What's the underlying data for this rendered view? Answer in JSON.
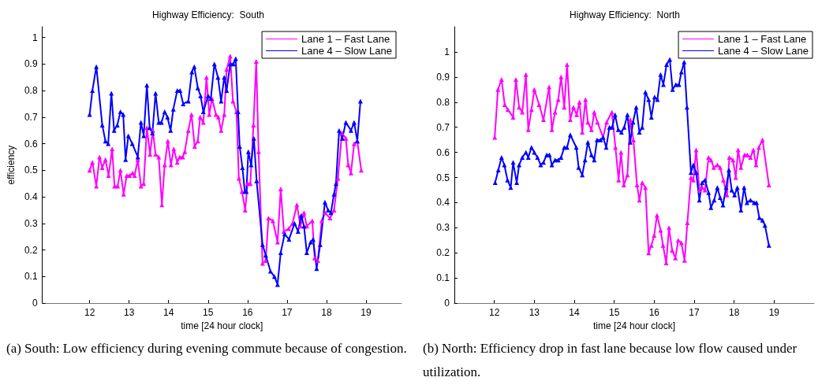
{
  "chart_data": [
    {
      "type": "line",
      "title": "Highway Efficiency:  South",
      "xlabel": "time [24 hour clock]",
      "ylabel": "efficiency",
      "xlim": [
        10.8,
        19.9
      ],
      "ylim": [
        0,
        1.04
      ],
      "xticks": [
        12,
        13,
        14,
        15,
        16,
        17,
        18,
        19
      ],
      "yticks": [
        0,
        0.1,
        0.2,
        0.3,
        0.4,
        0.5,
        0.6,
        0.7,
        0.8,
        0.9,
        1
      ],
      "grid": false,
      "legend": "top right",
      "line_style": "solid",
      "annotations": [
        "(a) South:  Low efficiency during evening commute because of congestion."
      ],
      "series": [
        {
          "name": "Lane 1 – Fast Lane",
          "color": "#ff00ff",
          "marker": "triangle",
          "x": [
            12.0,
            12.07,
            12.17,
            12.25,
            12.32,
            12.4,
            12.48,
            12.57,
            12.63,
            12.71,
            12.78,
            12.86,
            12.94,
            13.01,
            13.09,
            13.14,
            13.22,
            13.3,
            13.37,
            13.45,
            13.53,
            13.6,
            13.67,
            13.75,
            13.83,
            13.9,
            13.98,
            14.06,
            14.13,
            14.22,
            14.28,
            14.36,
            14.41,
            14.5,
            14.58,
            14.66,
            14.74,
            14.8,
            14.88,
            14.96,
            15.03,
            15.1,
            15.2,
            15.26,
            15.33,
            15.41,
            15.47,
            15.56,
            15.63,
            15.72,
            15.78,
            15.86,
            15.94,
            16.0,
            16.07,
            16.15,
            16.22,
            16.28,
            16.38,
            16.46,
            16.53,
            16.64,
            16.76,
            16.84,
            16.92,
            17.04,
            17.14,
            17.25,
            17.34,
            17.43,
            17.5,
            17.64,
            17.7,
            17.78,
            17.88,
            17.96,
            18.09,
            18.19,
            18.29,
            18.39,
            18.49,
            18.55,
            18.62,
            18.7,
            18.78,
            18.88
          ],
          "values": [
            0.5,
            0.53,
            0.44,
            0.55,
            0.51,
            0.54,
            0.48,
            0.58,
            0.44,
            0.44,
            0.5,
            0.41,
            0.48,
            0.48,
            0.49,
            0.48,
            0.54,
            0.44,
            0.45,
            0.66,
            0.56,
            0.65,
            0.56,
            0.55,
            0.37,
            0.52,
            0.61,
            0.52,
            0.58,
            0.53,
            0.55,
            0.55,
            0.57,
            0.65,
            0.71,
            0.59,
            0.61,
            0.7,
            0.68,
            0.85,
            0.71,
            0.77,
            0.71,
            0.7,
            0.65,
            0.71,
            0.88,
            0.93,
            0.76,
            0.72,
            0.47,
            0.42,
            0.35,
            0.45,
            0.45,
            0.67,
            0.91,
            0.57,
            0.15,
            0.16,
            0.32,
            0.31,
            0.23,
            0.43,
            0.27,
            0.28,
            0.3,
            0.37,
            0.29,
            0.34,
            0.29,
            0.31,
            0.17,
            0.16,
            0.31,
            0.34,
            0.32,
            0.35,
            0.47,
            0.64,
            0.62,
            0.52,
            0.49,
            0.6,
            0.61,
            0.5
          ]
        },
        {
          "name": "Lane 4 – Slow Lane",
          "color": "#0000ff",
          "marker": "triangle",
          "x": [
            12.0,
            12.07,
            12.17,
            12.32,
            12.4,
            12.47,
            12.55,
            12.62,
            12.7,
            12.78,
            12.85,
            12.91,
            12.98,
            13.08,
            13.22,
            13.3,
            13.37,
            13.45,
            13.52,
            13.59,
            13.67,
            13.75,
            13.82,
            13.9,
            13.97,
            14.05,
            14.12,
            14.22,
            14.29,
            14.37,
            14.5,
            14.59,
            14.65,
            14.74,
            14.81,
            14.88,
            15.0,
            15.07,
            15.16,
            15.25,
            15.33,
            15.41,
            15.47,
            15.56,
            15.64,
            15.7,
            15.76,
            15.8,
            15.87,
            15.93,
            15.97,
            16.02,
            16.09,
            16.16,
            16.23,
            16.38,
            16.46,
            16.58,
            16.68,
            16.76,
            16.84,
            16.94,
            17.05,
            17.19,
            17.28,
            17.36,
            17.43,
            17.5,
            17.6,
            17.66,
            17.75,
            17.84,
            17.96,
            18.04,
            18.11,
            18.19,
            18.24,
            18.32,
            18.4,
            18.49,
            18.62,
            18.7,
            18.78,
            18.86
          ],
          "values": [
            0.71,
            0.8,
            0.89,
            0.67,
            0.61,
            0.6,
            0.79,
            0.65,
            0.67,
            0.72,
            0.71,
            0.54,
            0.63,
            0.6,
            0.55,
            0.68,
            0.63,
            0.82,
            0.66,
            0.64,
            0.79,
            0.68,
            0.68,
            0.72,
            0.7,
            0.65,
            0.73,
            0.8,
            0.8,
            0.75,
            0.76,
            0.87,
            0.89,
            0.81,
            0.78,
            0.72,
            0.78,
            0.77,
            0.9,
            0.85,
            0.76,
            0.85,
            0.8,
            0.9,
            0.9,
            0.92,
            0.72,
            0.59,
            0.51,
            0.42,
            0.42,
            0.57,
            0.52,
            0.62,
            0.46,
            0.22,
            0.18,
            0.12,
            0.1,
            0.07,
            0.19,
            0.26,
            0.24,
            0.3,
            0.27,
            0.33,
            0.29,
            0.19,
            0.23,
            0.24,
            0.13,
            0.22,
            0.38,
            0.35,
            0.34,
            0.41,
            0.45,
            0.65,
            0.62,
            0.68,
            0.65,
            0.68,
            0.61,
            0.76
          ]
        }
      ]
    },
    {
      "type": "line",
      "title": "Highway Efficiency:  North",
      "xlabel": "time [24 hour clock]",
      "xlim": [
        11,
        20
      ],
      "ylim": [
        0,
        1.1
      ],
      "xticks": [
        12,
        13,
        14,
        15,
        16,
        17,
        18,
        19
      ],
      "yticks": [
        0,
        0.1,
        0.2,
        0.3,
        0.4,
        0.5,
        0.6,
        0.7,
        0.8,
        0.9,
        1
      ],
      "grid": false,
      "legend": "top right",
      "line_style": "solid",
      "annotations": [
        "(b) North:  Efficiency drop in fast lane because low flow caused under utilization."
      ],
      "series": [
        {
          "name": "Lane 1 – Fast Lane",
          "color": "#ff00ff",
          "marker": "triangle",
          "x": [
            12.01,
            12.09,
            12.18,
            12.26,
            12.34,
            12.47,
            12.54,
            12.62,
            12.7,
            12.79,
            12.85,
            12.93,
            13.0,
            13.12,
            13.23,
            13.37,
            13.44,
            13.52,
            13.6,
            13.67,
            13.75,
            13.82,
            13.9,
            13.98,
            14.06,
            14.13,
            14.2,
            14.28,
            14.34,
            14.43,
            14.5,
            14.58,
            14.72,
            14.81,
            14.94,
            15.03,
            15.11,
            15.17,
            15.24,
            15.33,
            15.4,
            15.48,
            15.57,
            15.63,
            15.7,
            15.78,
            15.86,
            15.93,
            16.0,
            16.07,
            16.16,
            16.22,
            16.3,
            16.37,
            16.45,
            16.53,
            16.6,
            16.68,
            16.76,
            16.83,
            16.92,
            16.98,
            17.05,
            17.13,
            17.2,
            17.27,
            17.36,
            17.42,
            17.49,
            17.58,
            17.65,
            17.73,
            17.82,
            17.88,
            17.97,
            18.04,
            18.1,
            18.17,
            18.26,
            18.33,
            18.41,
            18.48,
            18.55,
            18.62,
            18.71,
            18.87
          ],
          "values": [
            0.66,
            0.85,
            0.89,
            0.79,
            0.77,
            0.74,
            0.89,
            0.78,
            0.76,
            0.91,
            0.69,
            0.77,
            0.85,
            0.79,
            0.73,
            0.86,
            0.69,
            0.76,
            0.81,
            0.9,
            0.78,
            0.95,
            0.73,
            0.78,
            0.75,
            0.8,
            0.68,
            0.81,
            0.72,
            0.69,
            0.76,
            0.72,
            0.66,
            0.72,
            0.76,
            0.62,
            0.49,
            0.6,
            0.47,
            0.51,
            0.73,
            0.65,
            0.47,
            0.41,
            0.48,
            0.46,
            0.2,
            0.23,
            0.27,
            0.35,
            0.29,
            0.23,
            0.16,
            0.3,
            0.21,
            0.18,
            0.25,
            0.24,
            0.17,
            0.32,
            0.5,
            0.49,
            0.61,
            0.45,
            0.46,
            0.45,
            0.58,
            0.57,
            0.54,
            0.55,
            0.54,
            0.49,
            0.43,
            0.58,
            0.57,
            0.5,
            0.61,
            0.54,
            0.59,
            0.59,
            0.58,
            0.61,
            0.55,
            0.62,
            0.65,
            0.47
          ]
        },
        {
          "name": "Lane 4 – Slow Lane",
          "color": "#0000ff",
          "marker": "triangle",
          "x": [
            12.02,
            12.1,
            12.18,
            12.25,
            12.33,
            12.41,
            12.47,
            12.56,
            12.62,
            12.7,
            12.79,
            12.85,
            12.93,
            13.0,
            13.08,
            13.16,
            13.23,
            13.31,
            13.38,
            13.44,
            13.52,
            13.6,
            13.67,
            13.75,
            13.82,
            13.9,
            14.05,
            14.11,
            14.2,
            14.27,
            14.34,
            14.43,
            14.5,
            14.57,
            14.66,
            14.72,
            14.8,
            14.88,
            14.95,
            15.02,
            15.1,
            15.18,
            15.25,
            15.33,
            15.4,
            15.47,
            15.55,
            15.63,
            15.7,
            15.78,
            15.86,
            15.93,
            16.01,
            16.08,
            16.16,
            16.23,
            16.31,
            16.39,
            16.46,
            16.54,
            16.62,
            16.68,
            16.75,
            16.82,
            16.92,
            16.98,
            17.05,
            17.13,
            17.2,
            17.27,
            17.36,
            17.42,
            17.5,
            17.58,
            17.65,
            17.72,
            17.8,
            17.87,
            17.94,
            18.01,
            18.08,
            18.17,
            18.25,
            18.32,
            18.41,
            18.5,
            18.56,
            18.63,
            18.71,
            18.77,
            18.87
          ],
          "values": [
            0.48,
            0.53,
            0.58,
            0.55,
            0.49,
            0.46,
            0.56,
            0.48,
            0.55,
            0.58,
            0.6,
            0.58,
            0.62,
            0.6,
            0.58,
            0.55,
            0.56,
            0.59,
            0.59,
            0.55,
            0.57,
            0.57,
            0.58,
            0.62,
            0.62,
            0.67,
            0.62,
            0.54,
            0.51,
            0.57,
            0.64,
            0.59,
            0.57,
            0.65,
            0.65,
            0.66,
            0.62,
            0.7,
            0.7,
            0.75,
            0.69,
            0.68,
            0.7,
            0.75,
            0.64,
            0.72,
            0.78,
            0.68,
            0.7,
            0.84,
            0.81,
            0.74,
            0.82,
            0.81,
            0.91,
            0.87,
            0.95,
            0.97,
            0.85,
            0.87,
            0.87,
            0.92,
            0.96,
            0.78,
            0.52,
            0.55,
            0.52,
            0.41,
            0.48,
            0.49,
            0.44,
            0.38,
            0.41,
            0.46,
            0.42,
            0.39,
            0.46,
            0.53,
            0.45,
            0.43,
            0.46,
            0.37,
            0.46,
            0.4,
            0.41,
            0.4,
            0.4,
            0.34,
            0.33,
            0.31,
            0.23
          ]
        }
      ]
    }
  ]
}
